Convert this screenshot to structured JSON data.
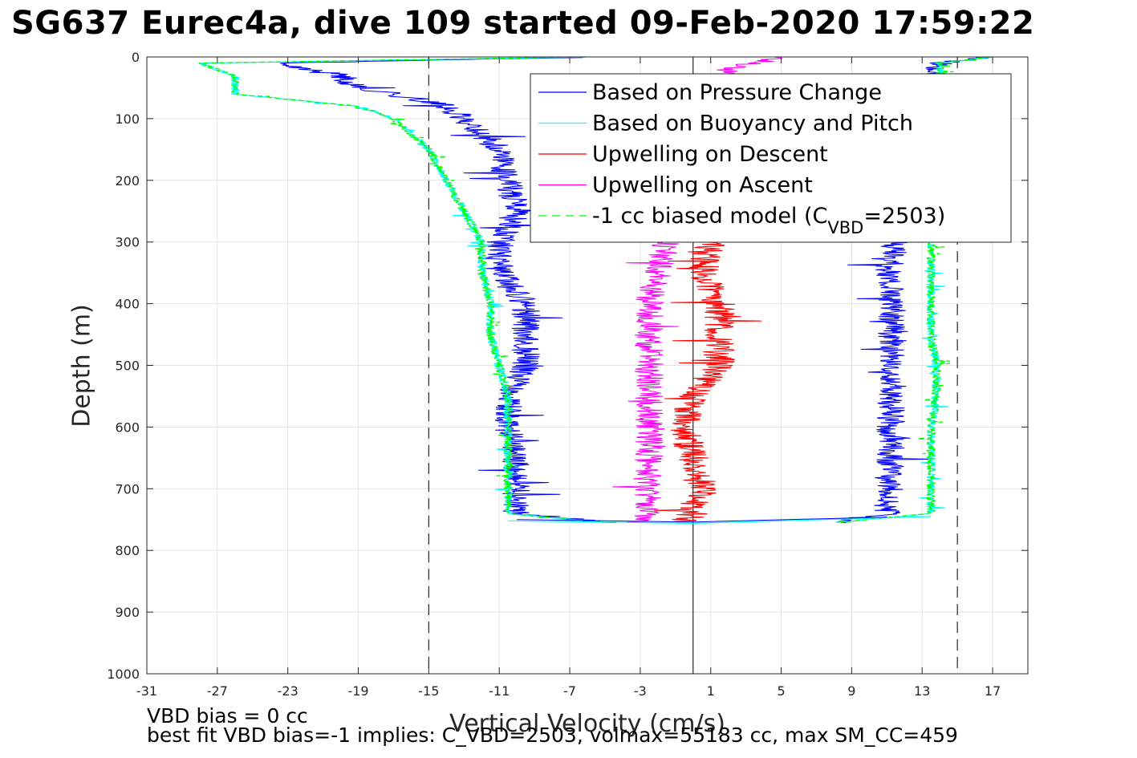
{
  "title": "SG637 Eurec4a, dive 109 started 09-Feb-2020 17:59:22",
  "chart_data": {
    "type": "line",
    "xlabel": "Vertical Velocity (cm/s)",
    "ylabel": "Depth (m)",
    "xlim": [
      -31,
      19
    ],
    "ylim": [
      0,
      1000
    ],
    "y_reversed": true,
    "grid": true,
    "xticks": [
      -31,
      -27,
      -23,
      -19,
      -15,
      -11,
      -7,
      -3,
      1,
      5,
      9,
      13,
      17
    ],
    "yticks": [
      0,
      100,
      200,
      300,
      400,
      500,
      600,
      700,
      800,
      900,
      1000
    ],
    "reference_lines": {
      "dashed_x": [
        -15,
        15
      ],
      "solid_x": [
        0
      ]
    },
    "legend": {
      "position": "top-right",
      "entries": [
        {
          "label": "Based on Pressure Change",
          "color": "#0000ff",
          "style": "solid"
        },
        {
          "label": "Based on Buoyancy and Pitch",
          "color": "#00ffff",
          "style": "solid"
        },
        {
          "label": "Upwelling on Descent",
          "color": "#ff0000",
          "style": "solid"
        },
        {
          "label": "Upwelling on Ascent",
          "color": "#ff00ff",
          "style": "solid"
        },
        {
          "label_prefix": "-1 cc biased model (C",
          "label_sub": "VBD",
          "label_suffix": "=2503)",
          "color": "#00ff00",
          "style": "dashed"
        }
      ]
    },
    "series": [
      {
        "name": "Based on Pressure Change",
        "color": "#0000ff",
        "depth": [
          0,
          10,
          30,
          50,
          60,
          80,
          100,
          150,
          200,
          250,
          300,
          350,
          400,
          450,
          500,
          550,
          600,
          650,
          700,
          740,
          755
        ],
        "descent": [
          -5,
          -24,
          -20,
          -19,
          -17,
          -14,
          -13,
          -11,
          -10.5,
          -10,
          -11,
          -11,
          -9.5,
          -9.5,
          -9.5,
          -10.5,
          -10.5,
          -10,
          -10,
          -10,
          -5
        ],
        "ascent": [
          17,
          14,
          14,
          14,
          14,
          13.5,
          12.5,
          12,
          11.5,
          11.5,
          11.5,
          11,
          11.3,
          11.3,
          11.3,
          11.3,
          11.2,
          11.2,
          11,
          11,
          8
        ],
        "noise": 0.8
      },
      {
        "name": "Based on Buoyancy and Pitch",
        "color": "#00ffff",
        "depth": [
          0,
          10,
          30,
          50,
          60,
          80,
          100,
          150,
          200,
          250,
          300,
          350,
          400,
          450,
          500,
          550,
          600,
          650,
          700,
          740,
          755
        ],
        "descent": [
          -6,
          -28,
          -26,
          -26,
          -26,
          -19,
          -17,
          -15,
          -14,
          -13,
          -12,
          -12,
          -11.5,
          -11.5,
          -11,
          -10.5,
          -10.5,
          -10.5,
          -10.5,
          -10.5,
          -5
        ],
        "ascent": [
          17,
          14,
          14,
          14,
          14,
          14,
          14,
          14,
          14,
          14,
          13.5,
          13.5,
          13.5,
          13.5,
          13.8,
          13.8,
          13.5,
          13.5,
          13.5,
          13.5,
          8
        ],
        "noise": 0.25
      },
      {
        "name": "Upwelling on Descent",
        "color": "#ff0000",
        "depth": [
          300,
          350,
          400,
          450,
          500,
          550,
          600,
          650,
          700,
          740,
          755
        ],
        "values": [
          1,
          0.5,
          1.5,
          1.5,
          1.5,
          0,
          -0.5,
          0,
          0.5,
          0,
          -0.5
        ],
        "noise": 0.9
      },
      {
        "name": "Upwelling on Ascent",
        "color": "#ff00ff",
        "depth": [
          0,
          20,
          300,
          350,
          400,
          450,
          500,
          550,
          600,
          650,
          700,
          740,
          755
        ],
        "values": [
          5,
          2,
          -1.5,
          -2,
          -2.5,
          -2.5,
          -2.5,
          -2.5,
          -2.5,
          -2.5,
          -2.5,
          -2.5,
          -3
        ],
        "noise": 0.8
      },
      {
        "name": "-1 cc biased model (CVBD=2503)",
        "color": "#00ff00",
        "dashed": true,
        "depth": [
          0,
          10,
          30,
          50,
          60,
          80,
          100,
          150,
          200,
          250,
          300,
          350,
          400,
          450,
          500,
          550,
          600,
          650,
          700,
          740,
          755
        ],
        "descent": [
          -6,
          -28,
          -26,
          -26,
          -26,
          -19,
          -17,
          -15,
          -14,
          -13,
          -12,
          -12,
          -11.5,
          -11.5,
          -11,
          -10.5,
          -10.5,
          -10.5,
          -10.5,
          -10.5,
          -5
        ],
        "ascent": [
          17,
          14,
          14,
          14,
          14,
          14,
          14,
          14,
          14,
          14,
          13.5,
          13.5,
          13.5,
          13.5,
          13.8,
          13.8,
          13.5,
          13.5,
          13.5,
          13.5,
          8
        ]
      }
    ]
  },
  "notes": {
    "line1": "VBD bias = 0 cc",
    "line2": "best fit VBD bias=-1 implies: C_VBD=2503, volmax=55183 cc, max SM_CC=459"
  }
}
